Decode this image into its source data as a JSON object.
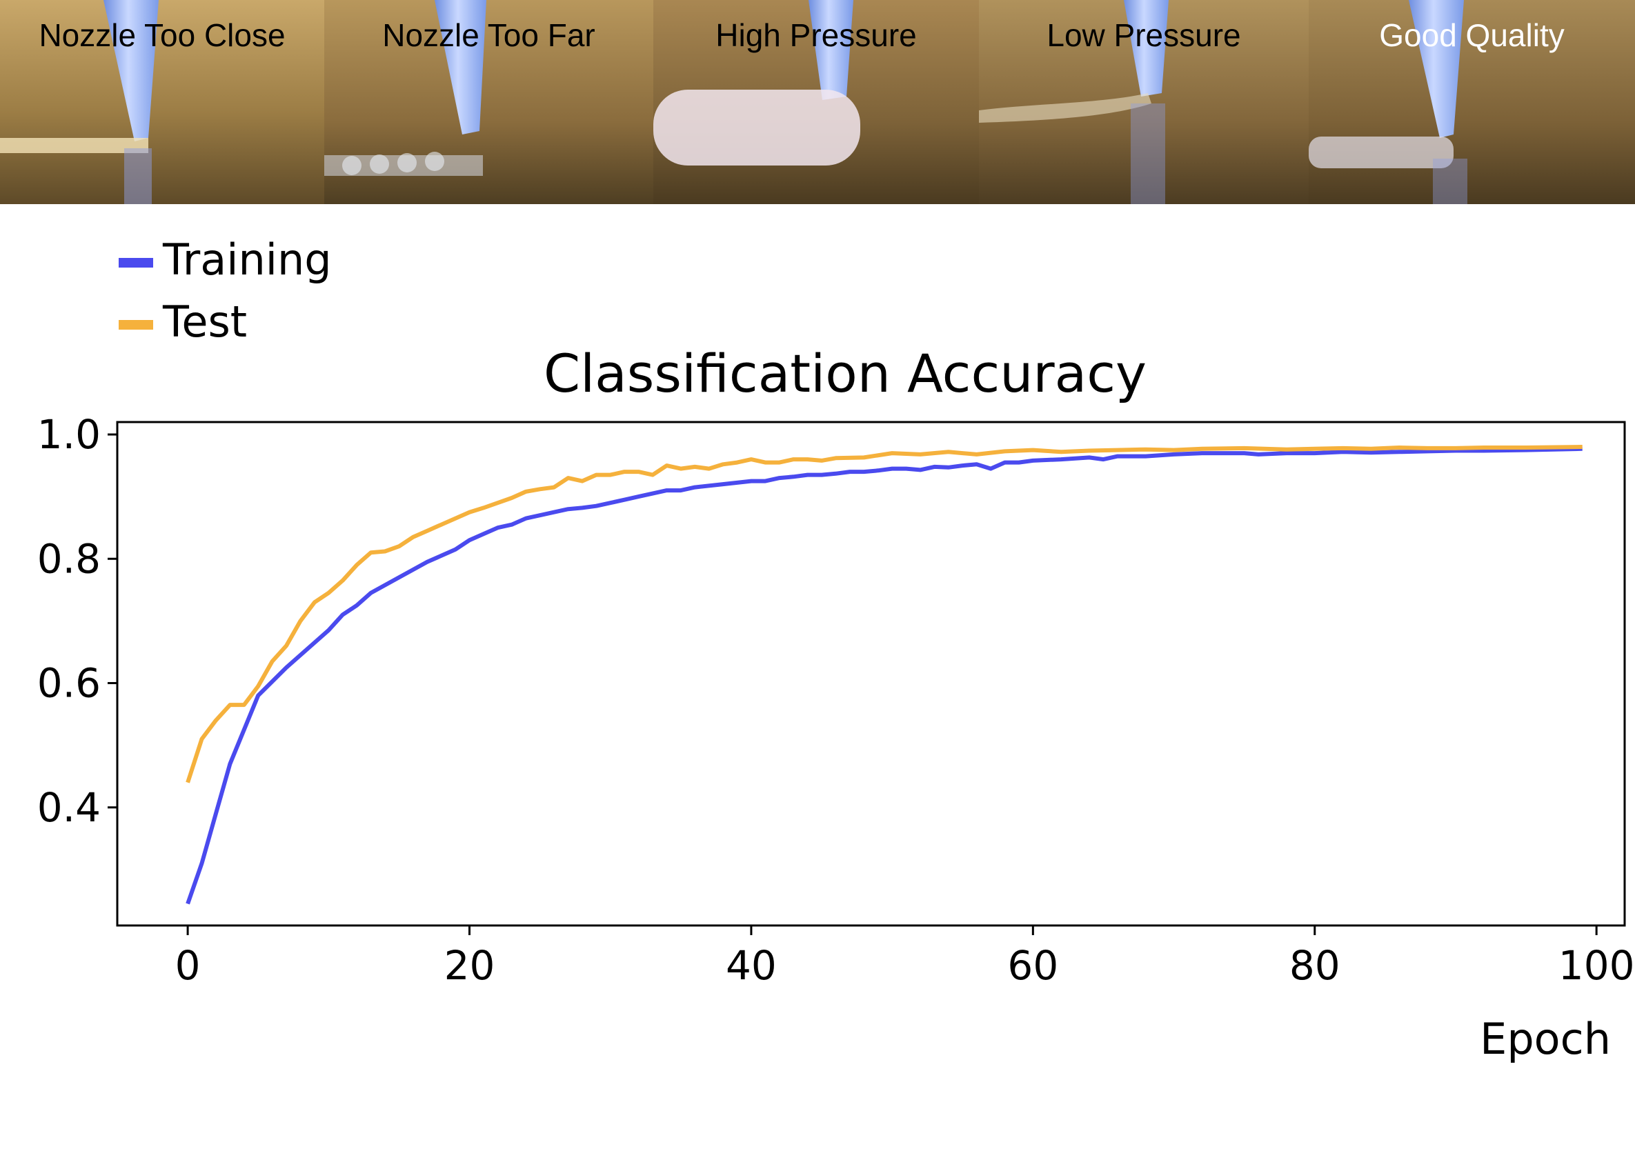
{
  "panels": [
    {
      "label": "Nozzle Too Close",
      "label_color": "#000000"
    },
    {
      "label": "Nozzle Too Far",
      "label_color": "#000000"
    },
    {
      "label": "High Pressure",
      "label_color": "#000000"
    },
    {
      "label": "Low Pressure",
      "label_color": "#000000"
    },
    {
      "label": "Good Quality",
      "label_color": "#ffffff"
    }
  ],
  "chart_data": {
    "type": "line",
    "title": "Classification Accuracy",
    "xlabel": "Epoch",
    "ylabel": "",
    "xlim": [
      -5,
      102
    ],
    "ylim": [
      0.21,
      1.02
    ],
    "xticks": [
      0,
      20,
      40,
      60,
      80,
      100
    ],
    "yticks": [
      0.4,
      0.6,
      0.8,
      1.0
    ],
    "xtick_labels": [
      "0",
      "20",
      "40",
      "60",
      "80",
      "100"
    ],
    "ytick_labels": [
      "0.4",
      "0.6",
      "0.8",
      "1.0"
    ],
    "legend_position": "top-left, above the plot",
    "grid": false,
    "series": [
      {
        "name": "Training",
        "color": "#4a4aee",
        "x": [
          0,
          1,
          2,
          3,
          5,
          7,
          9,
          10,
          11,
          12,
          13,
          15,
          17,
          18,
          19,
          20,
          21,
          22,
          23,
          24,
          25,
          26,
          27,
          28,
          29,
          30,
          31,
          32,
          33,
          34,
          35,
          36,
          38,
          40,
          41,
          42,
          43,
          44,
          45,
          46,
          47,
          48,
          49,
          50,
          51,
          52,
          53,
          54,
          55,
          56,
          57,
          58,
          59,
          60,
          62,
          64,
          65,
          66,
          68,
          70,
          72,
          75,
          76,
          78,
          80,
          82,
          84,
          86,
          88,
          90,
          92,
          95,
          99
        ],
        "y": [
          0.245,
          0.31,
          0.39,
          0.47,
          0.58,
          0.625,
          0.665,
          0.685,
          0.71,
          0.725,
          0.745,
          0.77,
          0.795,
          0.805,
          0.815,
          0.83,
          0.84,
          0.85,
          0.855,
          0.865,
          0.87,
          0.875,
          0.88,
          0.882,
          0.885,
          0.89,
          0.895,
          0.9,
          0.905,
          0.91,
          0.91,
          0.915,
          0.92,
          0.925,
          0.925,
          0.93,
          0.932,
          0.935,
          0.935,
          0.937,
          0.94,
          0.94,
          0.942,
          0.945,
          0.945,
          0.943,
          0.948,
          0.947,
          0.95,
          0.952,
          0.945,
          0.955,
          0.955,
          0.958,
          0.96,
          0.963,
          0.96,
          0.965,
          0.965,
          0.968,
          0.97,
          0.97,
          0.968,
          0.97,
          0.97,
          0.972,
          0.971,
          0.972,
          0.973,
          0.974,
          0.974,
          0.975,
          0.977
        ]
      },
      {
        "name": "Test",
        "color": "#f5b13c",
        "x": [
          0,
          1,
          2,
          3,
          4,
          5,
          6,
          7,
          8,
          9,
          10,
          11,
          12,
          13,
          14,
          15,
          16,
          17,
          18,
          19,
          20,
          21,
          22,
          23,
          24,
          25,
          26,
          27,
          28,
          29,
          30,
          31,
          32,
          33,
          34,
          35,
          36,
          37,
          38,
          39,
          40,
          41,
          42,
          43,
          44,
          45,
          46,
          48,
          50,
          52,
          54,
          56,
          58,
          60,
          62,
          64,
          66,
          68,
          70,
          72,
          75,
          78,
          80,
          82,
          84,
          86,
          88,
          90,
          92,
          95,
          99
        ],
        "y": [
          0.44,
          0.51,
          0.54,
          0.565,
          0.565,
          0.595,
          0.635,
          0.66,
          0.7,
          0.73,
          0.745,
          0.765,
          0.79,
          0.81,
          0.812,
          0.82,
          0.835,
          0.845,
          0.855,
          0.865,
          0.875,
          0.882,
          0.89,
          0.898,
          0.908,
          0.912,
          0.915,
          0.93,
          0.925,
          0.935,
          0.935,
          0.94,
          0.94,
          0.935,
          0.95,
          0.945,
          0.948,
          0.945,
          0.952,
          0.955,
          0.96,
          0.955,
          0.955,
          0.96,
          0.96,
          0.958,
          0.962,
          0.963,
          0.97,
          0.968,
          0.972,
          0.968,
          0.973,
          0.975,
          0.972,
          0.974,
          0.975,
          0.976,
          0.975,
          0.977,
          0.978,
          0.976,
          0.977,
          0.978,
          0.977,
          0.979,
          0.978,
          0.978,
          0.979,
          0.979,
          0.98
        ]
      }
    ]
  }
}
